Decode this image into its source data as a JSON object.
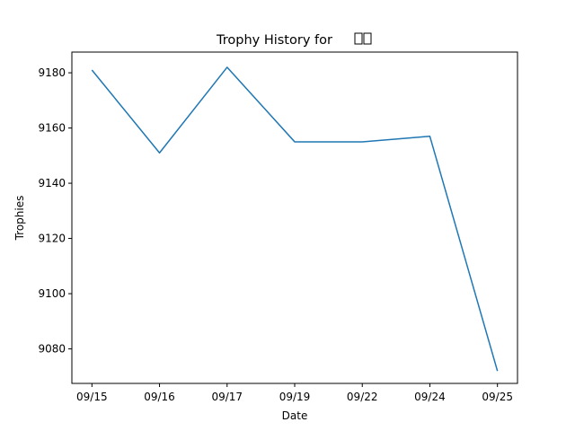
{
  "chart_data": {
    "type": "line",
    "title": "Trophy History for",
    "title_suffix_glyphs": 2,
    "xlabel": "Date",
    "ylabel": "Trophies",
    "categories": [
      "09/15",
      "09/16",
      "09/17",
      "09/19",
      "09/22",
      "09/24",
      "09/25"
    ],
    "series": [
      {
        "color": "#1f77b4",
        "values": [
          9181,
          9151,
          9182,
          9155,
          9155,
          9157,
          9072
        ]
      }
    ],
    "ylim": [
      9067.5,
      9187.5
    ],
    "yticks": [
      9080,
      9100,
      9120,
      9140,
      9160,
      9180
    ],
    "grid": false,
    "legend": "none"
  }
}
